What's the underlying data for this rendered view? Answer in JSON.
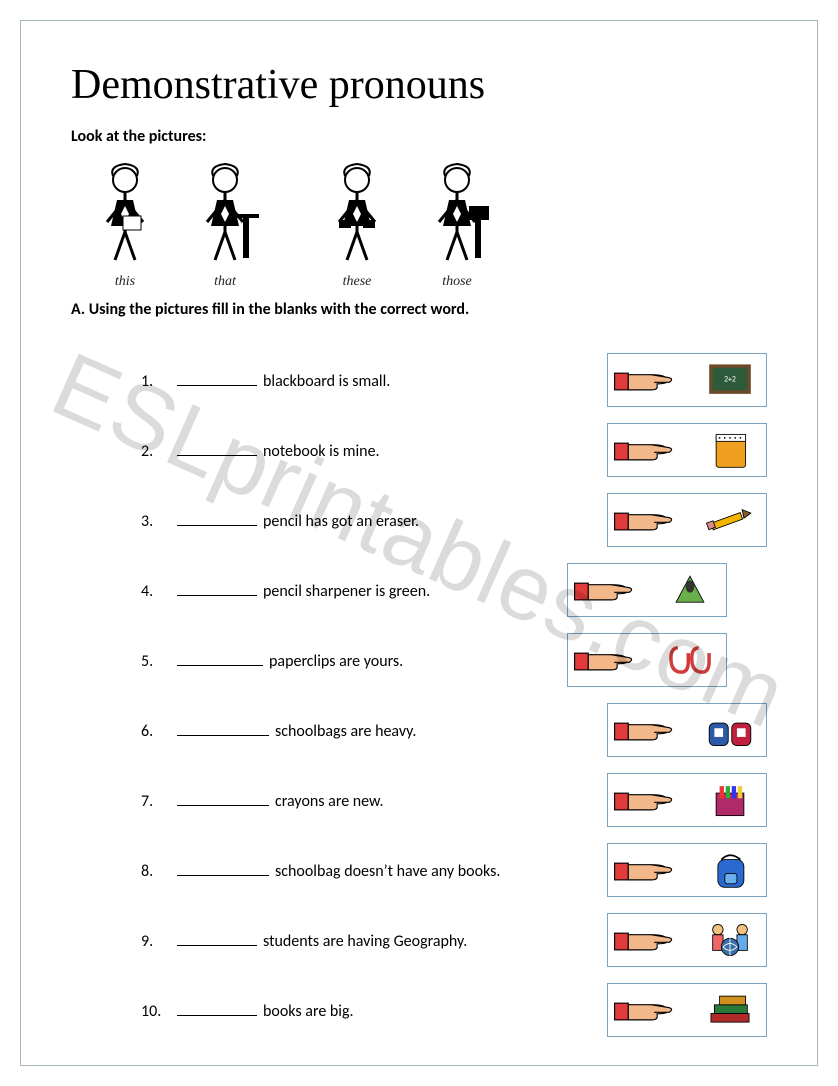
{
  "title": "Demonstrative pronouns",
  "subheading": "Look at the pictures:",
  "section_a": "A. Using the pictures fill in the blanks with the correct word.",
  "watermark": "ESLprintables.com",
  "examples": [
    {
      "word": "this"
    },
    {
      "word": "that"
    },
    {
      "word": "these"
    },
    {
      "word": "those"
    }
  ],
  "questions": [
    {
      "num": "1.",
      "text": " blackboard is small.",
      "blank_w": 80,
      "icon": "blackboard",
      "offset": false
    },
    {
      "num": "2.",
      "text": " notebook is mine.",
      "blank_w": 80,
      "icon": "notebook",
      "offset": false
    },
    {
      "num": "3.",
      "text": " pencil has got an eraser.",
      "blank_w": 80,
      "icon": "pencil",
      "offset": false
    },
    {
      "num": "4.",
      "text": " pencil sharpener is green.",
      "blank_w": 80,
      "icon": "sharpener",
      "offset": true
    },
    {
      "num": "5.",
      "text": " paperclips are yours.",
      "blank_w": 86,
      "icon": "paperclips",
      "offset": true
    },
    {
      "num": "6.",
      "text": " schoolbags are heavy.",
      "blank_w": 92,
      "icon": "schoolbags",
      "offset": false
    },
    {
      "num": "7.",
      "text": " crayons are new.",
      "blank_w": 92,
      "icon": "crayons",
      "offset": false
    },
    {
      "num": "8.",
      "text": " schoolbag doesn’t have any books.",
      "blank_w": 92,
      "icon": "schoolbag",
      "offset": false
    },
    {
      "num": "9.",
      "text": " students are having Geography.",
      "blank_w": 80,
      "icon": "students",
      "offset": false
    },
    {
      "num": "10.",
      "text": " books are big.",
      "blank_w": 80,
      "icon": "books",
      "offset": false
    }
  ],
  "colors": {
    "frame": "#a8b8b8",
    "cell_border": "#7aa3c2",
    "hand_skin": "#f2b88a",
    "hand_cuff": "#e23b3b",
    "blackboard_bg": "#2d5a3a",
    "blackboard_frame": "#6b4a2a",
    "notebook": "#f0a020",
    "pencil_body": "#f5b400",
    "pencil_tip": "#8a5a2a",
    "sharpener": "#6ab04a",
    "paperclip": "#d23b3b",
    "bag1": "#2a5aa8",
    "bag2": "#c02040",
    "crayon_box": "#b02a6a",
    "backpack": "#2a6ad0",
    "globe": "#3a70a8",
    "book1": "#2a7a3a",
    "book2": "#b02a2a",
    "book3": "#d09020"
  }
}
